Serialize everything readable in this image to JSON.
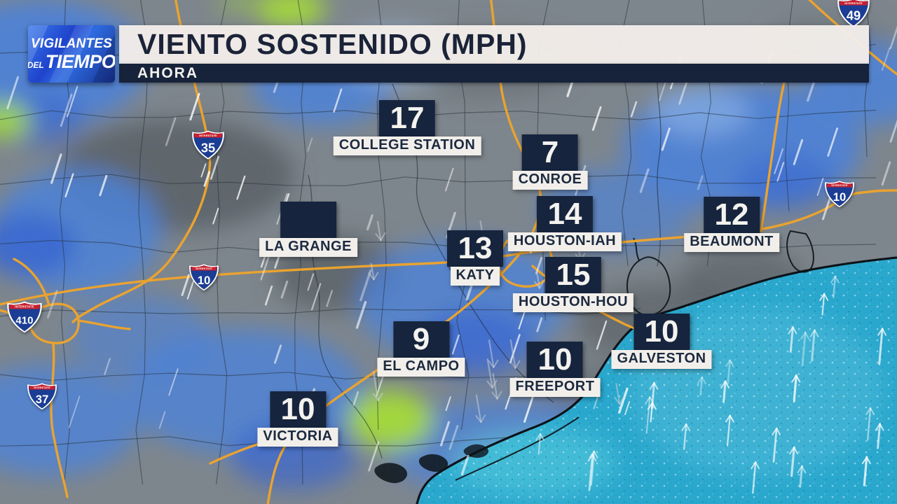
{
  "logo": {
    "line1": "VIGILANTES",
    "del": "DEL",
    "tiempo": "TIEMPO"
  },
  "header": {
    "title": "VIENTO SOSTENIDO (MPH)",
    "subtitle": "AHORA"
  },
  "stations": [
    {
      "name": "COLLEGE STATION",
      "value": "17"
    },
    {
      "name": "CONROE",
      "value": "7"
    },
    {
      "name": "HOUSTON-IAH",
      "value": "14"
    },
    {
      "name": "BEAUMONT",
      "value": "12"
    },
    {
      "name": "LA GRANGE",
      "value": ""
    },
    {
      "name": "KATY",
      "value": "13"
    },
    {
      "name": "HOUSTON-HOU",
      "value": "15"
    },
    {
      "name": "EL CAMPO",
      "value": "9"
    },
    {
      "name": "GALVESTON",
      "value": "10"
    },
    {
      "name": "FREEPORT",
      "value": "10"
    },
    {
      "name": "VICTORIA",
      "value": "10"
    }
  ],
  "shields": {
    "caption": "INTERSTATE",
    "routes": [
      "35",
      "10",
      "410",
      "37",
      "49",
      "10"
    ]
  },
  "colors": {
    "navy_box": "#16243d",
    "label_bg": "#f2efeb",
    "header_bg": "#f2ede9",
    "header_navy": "#17233b",
    "land_gray": "#7e868d",
    "rain_blue": "#4d82d8",
    "rain_green": "#a4da3a",
    "gulf_cyan": "#2aa7cd",
    "highway_orange": "#eaa32f",
    "shield_red": "#c8202e",
    "shield_blue": "#1b3d94",
    "logo_blue": "#1f43cc"
  }
}
